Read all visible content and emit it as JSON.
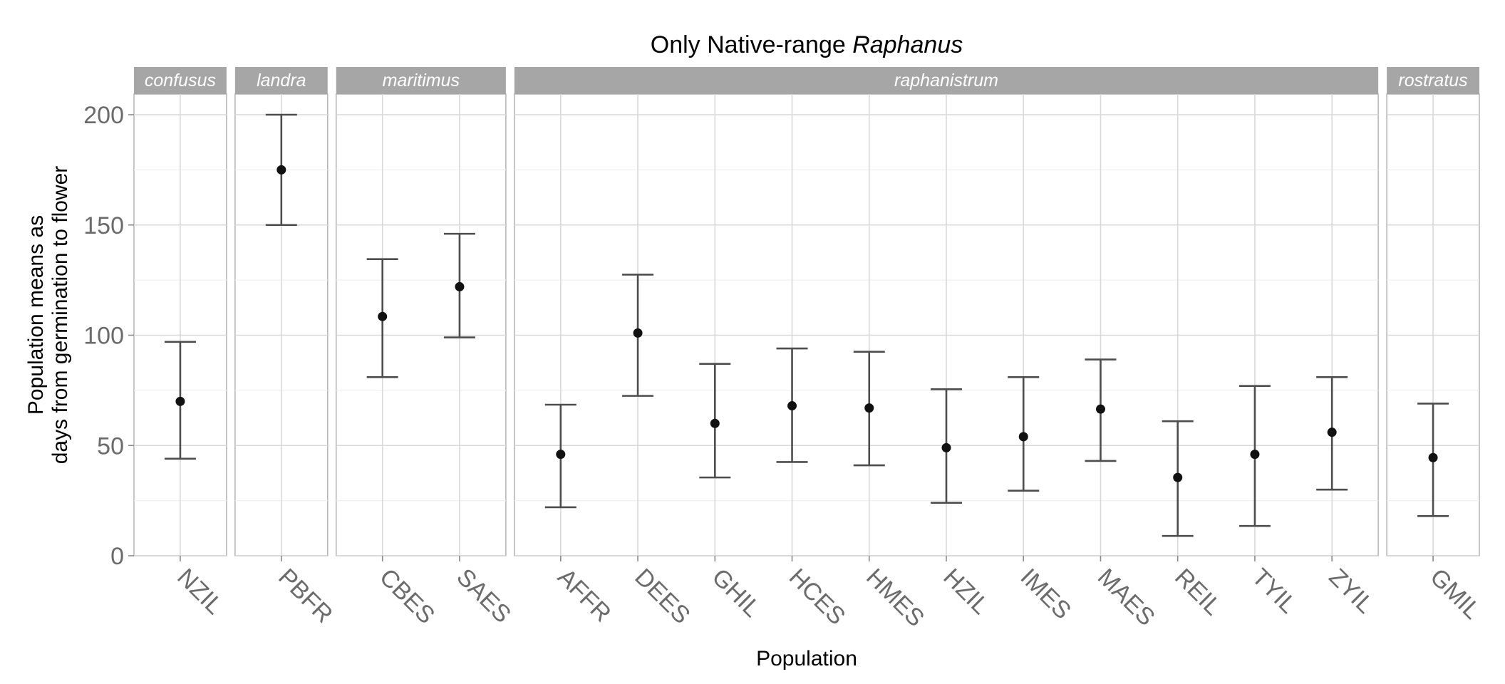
{
  "chart_data": {
    "type": "scatter",
    "title_prefix": "Only Native-range ",
    "title_italic": "Raphanus",
    "xlabel": "Population",
    "ylabel_line1": "Population means as",
    "ylabel_line2": "days from germination to flower",
    "ylim": [
      0,
      200
    ],
    "yticks": [
      0,
      50,
      100,
      150,
      200
    ],
    "grid": true,
    "facets": [
      {
        "name": "confusus",
        "populations": [
          {
            "x": "NZIL",
            "mean": 70,
            "lower": 44,
            "upper": 97
          }
        ]
      },
      {
        "name": "landra",
        "populations": [
          {
            "x": "PBFR",
            "mean": 175,
            "lower": 150,
            "upper": 200
          }
        ]
      },
      {
        "name": "maritimus",
        "populations": [
          {
            "x": "CBES",
            "mean": 108.5,
            "lower": 81,
            "upper": 134.5
          },
          {
            "x": "SAES",
            "mean": 122,
            "lower": 99,
            "upper": 146
          }
        ]
      },
      {
        "name": "raphanistrum",
        "populations": [
          {
            "x": "AFFR",
            "mean": 46,
            "lower": 22,
            "upper": 68.5
          },
          {
            "x": "DEES",
            "mean": 101,
            "lower": 72.5,
            "upper": 127.5
          },
          {
            "x": "GHIL",
            "mean": 60,
            "lower": 35.5,
            "upper": 87
          },
          {
            "x": "HCES",
            "mean": 68,
            "lower": 42.5,
            "upper": 94
          },
          {
            "x": "HMES",
            "mean": 67,
            "lower": 41,
            "upper": 92.5
          },
          {
            "x": "HZIL",
            "mean": 49,
            "lower": 24,
            "upper": 75.5
          },
          {
            "x": "IMES",
            "mean": 54,
            "lower": 29.5,
            "upper": 81
          },
          {
            "x": "MAES",
            "mean": 66.5,
            "lower": 43,
            "upper": 89
          },
          {
            "x": "REIL",
            "mean": 35.5,
            "lower": 9,
            "upper": 61
          },
          {
            "x": "TYIL",
            "mean": 46,
            "lower": 13.5,
            "upper": 77
          },
          {
            "x": "ZYIL",
            "mean": 56,
            "lower": 30,
            "upper": 81
          }
        ]
      },
      {
        "name": "rostratus",
        "populations": [
          {
            "x": "GMIL",
            "mean": 44.5,
            "lower": 18,
            "upper": 69
          }
        ]
      }
    ]
  }
}
